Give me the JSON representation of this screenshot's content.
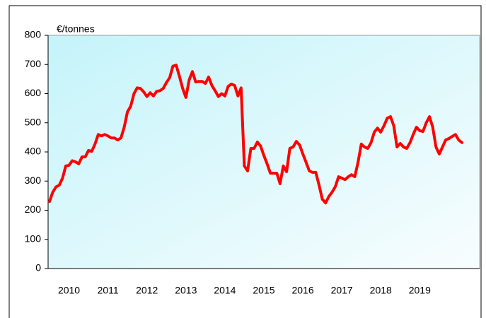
{
  "chart_data": {
    "type": "line",
    "y_label": "€/tonnes",
    "categories": [
      null,
      null,
      null,
      null,
      null,
      null,
      "2010",
      null,
      null,
      null,
      null,
      null,
      null,
      null,
      null,
      null,
      null,
      null,
      "2011",
      null,
      null,
      null,
      null,
      null,
      null,
      null,
      null,
      null,
      null,
      null,
      "2012",
      null,
      null,
      null,
      null,
      null,
      null,
      null,
      null,
      null,
      null,
      null,
      "2013",
      null,
      null,
      null,
      null,
      null,
      null,
      null,
      null,
      null,
      null,
      null,
      "2014",
      null,
      null,
      null,
      null,
      null,
      null,
      null,
      null,
      null,
      null,
      null,
      "2015",
      null,
      null,
      null,
      null,
      null,
      null,
      null,
      null,
      null,
      null,
      null,
      "2016",
      null,
      null,
      null,
      null,
      null,
      null,
      null,
      null,
      null,
      null,
      null,
      "2017",
      null,
      null,
      null,
      null,
      null,
      null,
      null,
      null,
      null,
      null,
      null,
      "2018",
      null,
      null,
      null,
      null,
      null,
      null,
      null,
      null,
      null,
      null,
      null,
      "2019",
      null,
      null,
      null,
      null,
      null,
      null,
      null,
      null,
      null,
      null,
      null,
      null,
      null
    ],
    "series": [
      {
        "color": "#ff0000",
        "values": [
          230,
          262,
          280,
          286,
          310,
          352,
          354,
          370,
          366,
          359,
          383,
          383,
          405,
          402,
          427,
          460,
          455,
          460,
          455,
          448,
          448,
          441,
          448,
          485,
          538,
          557,
          600,
          620,
          618,
          606,
          590,
          603,
          592,
          608,
          610,
          618,
          638,
          655,
          694,
          698,
          660,
          618,
          587,
          647,
          676,
          640,
          642,
          642,
          635,
          657,
          628,
          610,
          590,
          600,
          592,
          625,
          633,
          628,
          592,
          620,
          352,
          335,
          412,
          412,
          434,
          420,
          388,
          359,
          327,
          327,
          327,
          291,
          352,
          332,
          412,
          417,
          436,
          424,
          393,
          364,
          335,
          330,
          330,
          286,
          238,
          225,
          247,
          262,
          281,
          315,
          310,
          305,
          315,
          322,
          315,
          364,
          427,
          417,
          412,
          432,
          468,
          482,
          468,
          490,
          516,
          521,
          490,
          417,
          429,
          417,
          412,
          432,
          460,
          485,
          473,
          470,
          500,
          521,
          485,
          417,
          393,
          417,
          441,
          446,
          453,
          460,
          441,
          432
        ]
      }
    ],
    "ylim": [
      0,
      800
    ],
    "yticks": [
      0,
      100,
      200,
      300,
      400,
      500,
      600,
      700,
      800
    ],
    "grid": false
  }
}
